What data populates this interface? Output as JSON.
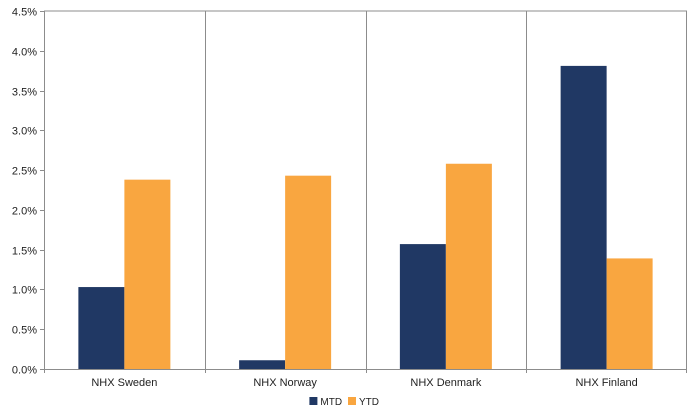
{
  "chart_data": {
    "type": "bar",
    "categories": [
      "NHX Sweden",
      "NHX Norway",
      "NHX Denmark",
      "NHX Finland"
    ],
    "series": [
      {
        "name": "MTD",
        "values": [
          1.03,
          0.11,
          1.57,
          3.81
        ],
        "color": "#203864"
      },
      {
        "name": "YTD",
        "values": [
          2.38,
          2.43,
          2.58,
          1.39
        ],
        "color": "#F9A640"
      }
    ],
    "ylim": [
      0,
      4.5
    ],
    "yticks": [
      0,
      0.5,
      1.0,
      1.5,
      2.0,
      2.5,
      3.0,
      3.5,
      4.0,
      4.5
    ],
    "ytick_labels": [
      "0.0%",
      "0.5%",
      "1.0%",
      "1.5%",
      "2.0%",
      "2.5%",
      "3.0%",
      "3.5%",
      "4.0%",
      "4.5%"
    ],
    "grid": "vertical category dividers",
    "legend": "bottom-center",
    "title": "",
    "xlabel": "",
    "ylabel": ""
  }
}
